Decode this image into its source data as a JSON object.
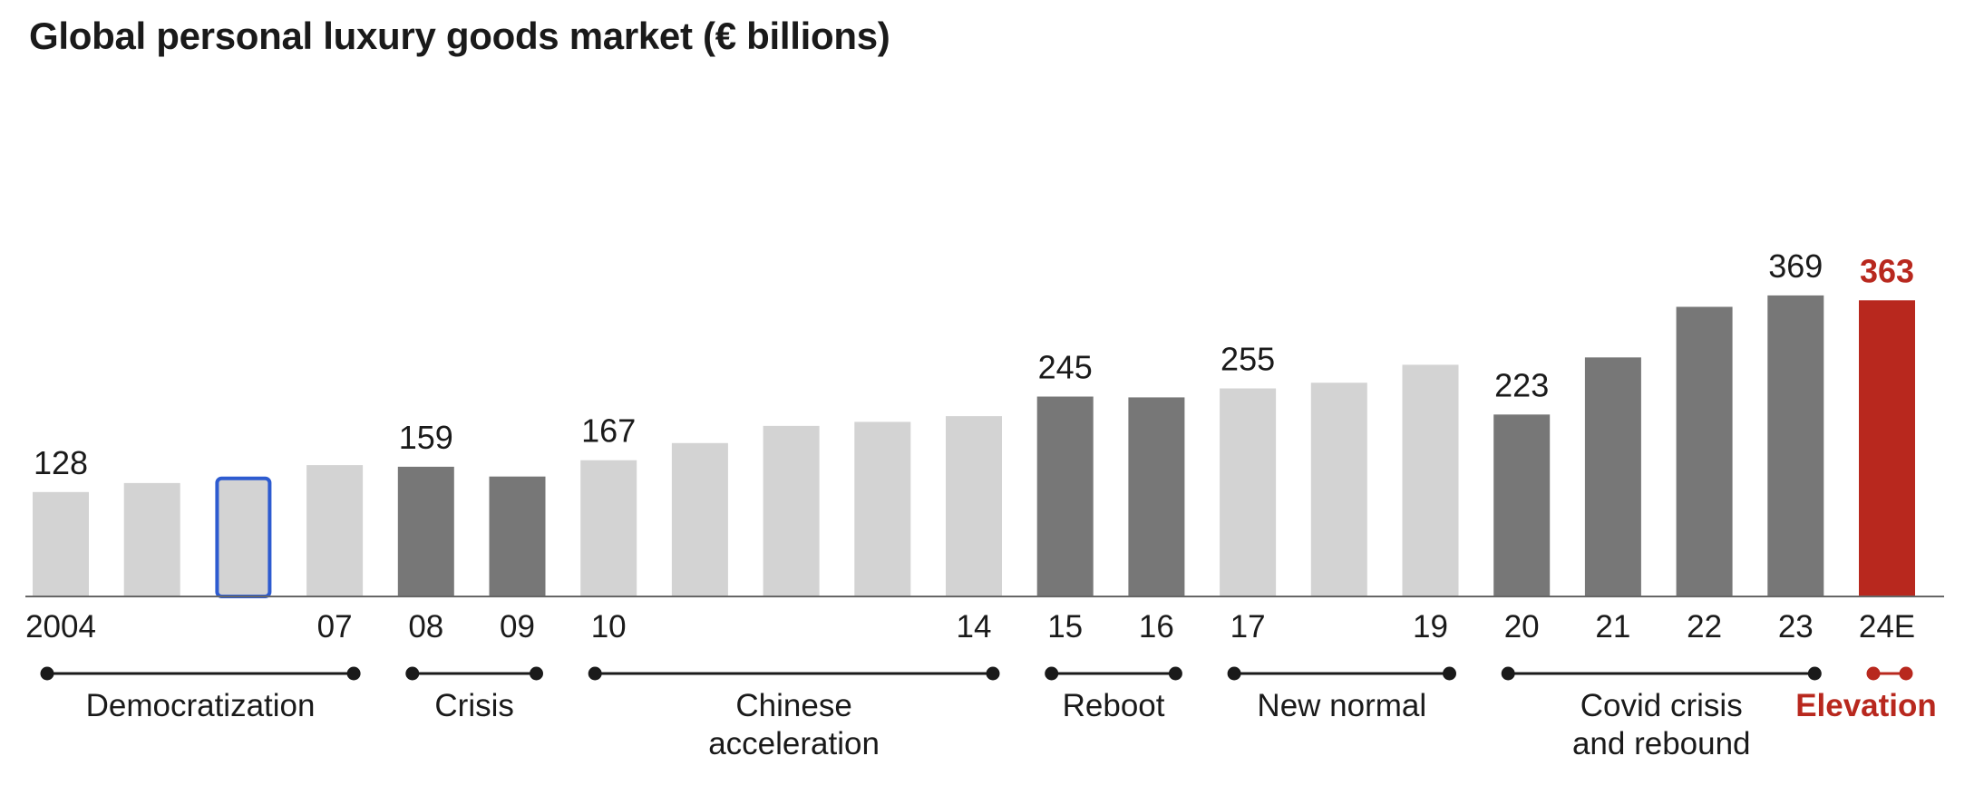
{
  "title": "Global personal luxury goods market (€ billions)",
  "colors": {
    "light": "#d3d3d3",
    "dark": "#777777",
    "highlight": "#b8281e",
    "outline": "#2d5bd0",
    "axis": "#666666",
    "text": "#1a1a1a"
  },
  "chart_data": {
    "type": "bar",
    "title": "Global personal luxury goods market (€ billions)",
    "xlabel": "",
    "ylabel": "",
    "ylim": [
      0,
      400
    ],
    "grid": false,
    "legend": "none",
    "categories": [
      "2004",
      "2005",
      "2006",
      "2007",
      "2008",
      "2009",
      "2010",
      "2011",
      "2012",
      "2013",
      "2014",
      "2015",
      "2016",
      "2017",
      "2018",
      "2019",
      "2020",
      "2021",
      "2022",
      "2023",
      "2024E"
    ],
    "values": [
      128,
      139,
      147,
      161,
      159,
      147,
      167,
      188,
      209,
      214,
      221,
      245,
      244,
      255,
      262,
      284,
      223,
      293,
      355,
      369,
      363
    ],
    "tick_labels": [
      "2004",
      "",
      "",
      "07",
      "08",
      "09",
      "10",
      "",
      "",
      "",
      "14",
      "15",
      "16",
      "17",
      "",
      "19",
      "20",
      "21",
      "22",
      "23",
      "24E"
    ],
    "value_labels": [
      "128",
      "",
      "",
      "",
      "159",
      "",
      "167",
      "",
      "",
      "",
      "",
      "245",
      "",
      "255",
      "",
      "",
      "223",
      "",
      "",
      "369",
      "363"
    ],
    "bar_styles": [
      "light",
      "light",
      "outlined",
      "light",
      "dark",
      "dark",
      "light",
      "light",
      "light",
      "light",
      "light",
      "dark",
      "dark",
      "light",
      "light",
      "light",
      "dark",
      "dark",
      "dark",
      "dark",
      "highlight"
    ],
    "eras": [
      {
        "label": [
          "Democratization"
        ],
        "start": 0,
        "end": 3
      },
      {
        "label": [
          "Crisis"
        ],
        "start": 4,
        "end": 5
      },
      {
        "label": [
          "Chinese",
          "acceleration"
        ],
        "start": 6,
        "end": 10
      },
      {
        "label": [
          "Reboot"
        ],
        "start": 11,
        "end": 12
      },
      {
        "label": [
          "New normal"
        ],
        "start": 13,
        "end": 15
      },
      {
        "label": [
          "Covid crisis",
          "and rebound"
        ],
        "start": 16,
        "end": 19
      },
      {
        "label": [
          "Elevation"
        ],
        "start": 20,
        "end": 20,
        "highlight": true
      }
    ]
  }
}
